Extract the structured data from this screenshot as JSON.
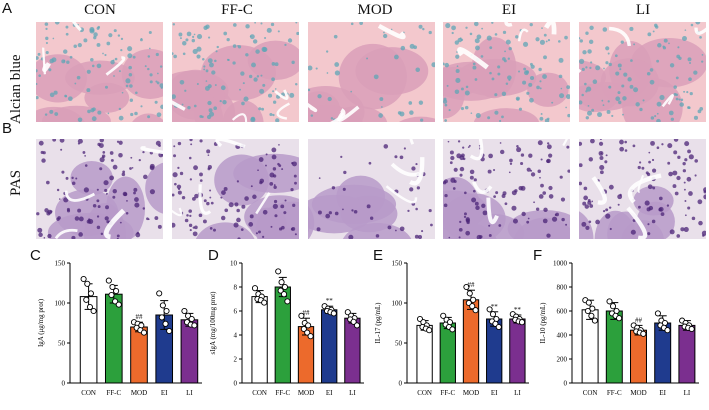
{
  "figure": {
    "panel_letters": [
      "A",
      "B",
      "C",
      "D",
      "E",
      "F"
    ],
    "groups": [
      "CON",
      "FF-C",
      "MOD",
      "EI",
      "LI"
    ],
    "row_labels": [
      "Alcian blue",
      "PAS"
    ]
  },
  "colors": {
    "CON": "#ffffff",
    "FF-C": "#2ca03c",
    "MOD": "#ec6a2c",
    "EI": "#1f3b8e",
    "LI": "#7b2f8f",
    "alcian_bg": "#f3c8cd",
    "alcian_tissue": "#d99fb8",
    "alcian_stain": "#5fa6b6",
    "pas_bg": "#e9e0ea",
    "pas_tissue": "#b79ac9",
    "pas_stain": "#4b2477"
  },
  "chart_data": [
    {
      "type": "bar",
      "panel": "C",
      "categories": [
        "CON",
        "FF-C",
        "MOD",
        "EI",
        "LI"
      ],
      "values": [
        108,
        111,
        70,
        85,
        79
      ],
      "errors": [
        16,
        11,
        6,
        18,
        8
      ],
      "points": [
        [
          130,
          124,
          112,
          104,
          95,
          90
        ],
        [
          128,
          120,
          115,
          110,
          102,
          98
        ],
        [
          76,
          74,
          72,
          69,
          66,
          63
        ],
        [
          112,
          97,
          90,
          82,
          74,
          65
        ],
        [
          90,
          84,
          80,
          76,
          73,
          72
        ]
      ],
      "significance": [
        "",
        "",
        "##",
        "",
        ""
      ],
      "ylabel": "IgA (μg/mg prot)",
      "ylim": [
        0,
        150
      ],
      "yticks": [
        0,
        50,
        100,
        150
      ]
    },
    {
      "type": "bar",
      "panel": "D",
      "categories": [
        "CON",
        "FF-C",
        "MOD",
        "EI",
        "LI"
      ],
      "values": [
        7.2,
        8.0,
        4.7,
        6.1,
        5.4
      ],
      "errors": [
        0.5,
        0.8,
        0.7,
        0.3,
        0.4
      ],
      "points": [
        [
          7.9,
          7.4,
          7.2,
          7.0,
          6.9,
          6.7
        ],
        [
          9.3,
          8.4,
          8.0,
          7.7,
          7.4,
          6.8
        ],
        [
          5.6,
          5.0,
          4.8,
          4.5,
          4.2,
          3.9
        ],
        [
          6.4,
          6.2,
          6.1,
          6.0,
          5.9,
          5.8
        ],
        [
          5.9,
          5.6,
          5.4,
          5.3,
          5.1,
          4.8
        ]
      ],
      "significance": [
        "",
        "",
        "##",
        "**",
        ""
      ],
      "ylabel": "sIgA (mg/100mg prot)",
      "ylim": [
        0,
        10
      ],
      "yticks": [
        0,
        2,
        4,
        6,
        8,
        10
      ]
    },
    {
      "type": "bar",
      "panel": "E",
      "categories": [
        "CON",
        "FF-C",
        "MOD",
        "EI",
        "LI"
      ],
      "values": [
        72,
        75,
        104,
        80,
        80
      ],
      "errors": [
        6,
        7,
        12,
        9,
        5
      ],
      "points": [
        [
          80,
          76,
          72,
          70,
          68,
          66
        ],
        [
          84,
          79,
          76,
          73,
          70,
          67
        ],
        [
          120,
          112,
          104,
          100,
          96,
          91
        ],
        [
          92,
          86,
          80,
          77,
          74,
          70
        ],
        [
          86,
          83,
          80,
          79,
          77,
          76
        ]
      ],
      "significance": [
        "",
        "",
        "##",
        "**",
        "**"
      ],
      "ylabel": "IL-17 (pg/mL)",
      "ylim": [
        0,
        150
      ],
      "yticks": [
        0,
        50,
        100,
        150
      ]
    },
    {
      "type": "bar",
      "panel": "F",
      "categories": [
        "CON",
        "FF-C",
        "MOD",
        "EI",
        "LI"
      ],
      "values": [
        610,
        600,
        440,
        500,
        480
      ],
      "errors": [
        80,
        70,
        40,
        60,
        40
      ],
      "points": [
        [
          690,
          670,
          620,
          600,
          560,
          520
        ],
        [
          680,
          640,
          600,
          580,
          560,
          540
        ],
        [
          480,
          460,
          440,
          430,
          420,
          410
        ],
        [
          580,
          520,
          500,
          480,
          460,
          440
        ],
        [
          520,
          500,
          480,
          470,
          460,
          450
        ]
      ],
      "significance": [
        "",
        "",
        "##",
        "",
        ""
      ],
      "ylabel": "IL-10 (pg/mL)",
      "ylim": [
        0,
        1000
      ],
      "yticks": [
        0,
        200,
        400,
        600,
        800,
        1000
      ]
    }
  ]
}
